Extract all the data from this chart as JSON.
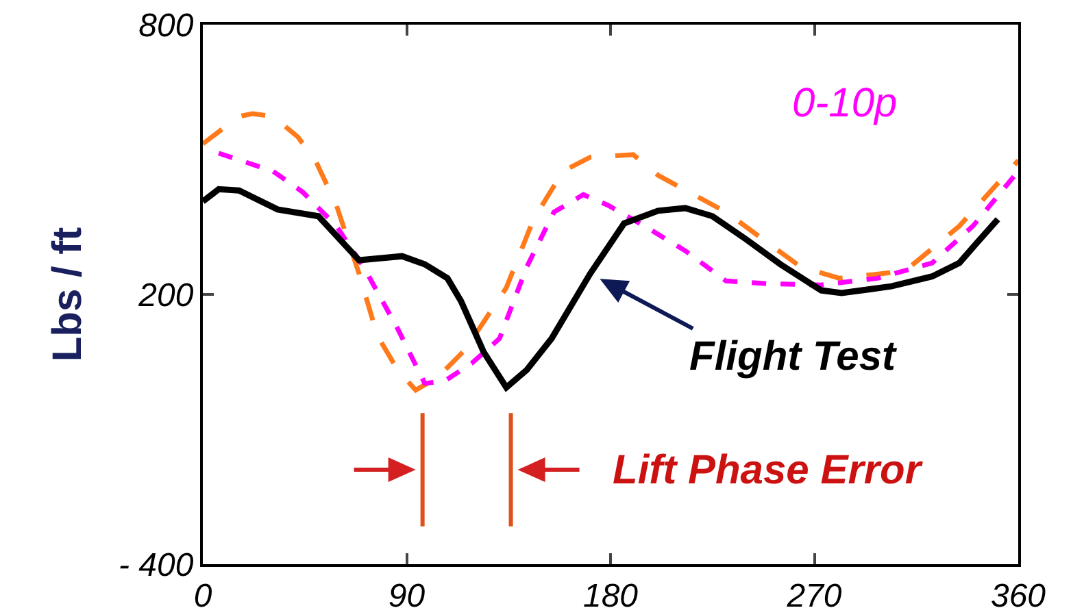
{
  "chart_data": {
    "type": "line",
    "ylabel": "Lbs / ft",
    "xlim": [
      0,
      360
    ],
    "xticks": [
      0,
      90,
      180,
      270,
      360
    ],
    "ylim": [
      -400,
      800
    ],
    "yticks": [
      {
        "value": -400,
        "label": "- 400"
      },
      200,
      800
    ],
    "grid": false,
    "legend": false,
    "marker": "none",
    "series": [
      {
        "color": "#ff7a1a",
        "line_style": "dashed",
        "x": [
          0,
          16,
          22,
          31,
          42,
          50,
          59,
          69,
          77,
          86,
          94,
          104,
          116,
          134,
          146,
          159,
          171,
          190,
          201,
          231,
          264,
          281,
          310,
          334,
          360
        ],
        "values": [
          535,
          596,
          602,
          596,
          550,
          495,
          398,
          246,
          109,
          32,
          -13,
          17,
          78,
          215,
          367,
          474,
          505,
          511,
          465,
          383,
          261,
          236,
          252,
          352,
          498
        ]
      },
      {
        "name": "0-10p",
        "color": "#ff00ff",
        "line_style": "dotted",
        "x": [
          7,
          31,
          44,
          59,
          71,
          86,
          98,
          107,
          119,
          131,
          143,
          155,
          168,
          179,
          195,
          213,
          231,
          249,
          273,
          298,
          322,
          340,
          360
        ],
        "values": [
          514,
          474,
          428,
          352,
          261,
          124,
          2,
          8,
          48,
          102,
          261,
          383,
          422,
          398,
          352,
          297,
          230,
          224,
          221,
          236,
          270,
          352,
          474
        ]
      },
      {
        "name": "Flight Test",
        "color": "#000000",
        "line_style": "solid",
        "x": [
          0,
          7,
          16,
          33,
          51,
          69,
          88,
          98,
          108,
          114,
          124,
          134,
          143,
          154,
          171,
          186,
          201,
          213,
          225,
          240,
          255,
          273,
          282,
          304,
          322,
          334,
          342,
          351
        ],
        "values": [
          407,
          434,
          431,
          389,
          374,
          276,
          285,
          267,
          236,
          185,
          72,
          -7,
          32,
          102,
          246,
          358,
          386,
          392,
          374,
          322,
          267,
          209,
          203,
          218,
          240,
          270,
          316,
          367
        ]
      }
    ],
    "ref_lines": [
      {
        "axis": "x",
        "value": 97,
        "label": null,
        "color": "#e0501a"
      },
      {
        "axis": "x",
        "value": 136,
        "label": null,
        "color": "#e0501a"
      }
    ],
    "annotations": [
      {
        "text": "Lift Phase Error",
        "x": 136,
        "y": -190
      }
    ]
  }
}
